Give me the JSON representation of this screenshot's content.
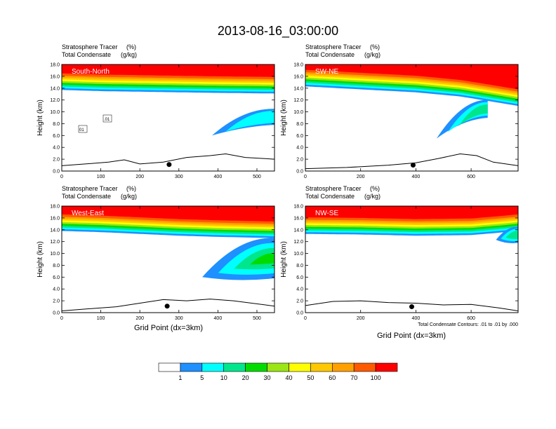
{
  "title": "2013-08-16_03:00:00",
  "colors": {
    "levels": [
      "#ffffff",
      "#1e90ff",
      "#00ffff",
      "#00e68c",
      "#00dc00",
      "#9be614",
      "#ffff00",
      "#ffc800",
      "#ffa000",
      "#ff5a00",
      "#ff0000"
    ],
    "axis": "#000000",
    "panel_label": "#ffffff"
  },
  "colorbar": {
    "labels": [
      "1",
      "5",
      "10",
      "20",
      "30",
      "40",
      "50",
      "60",
      "70",
      "100"
    ]
  },
  "footnote": "Total Condensate Contours: .01 to .01 by .000",
  "chart_data": [
    {
      "type": "heatmap",
      "panel": "South-North",
      "subtitle_left_1": "Stratosphere Tracer",
      "subtitle_unit_1": "(%)",
      "subtitle_left_2": "Total Condensate",
      "subtitle_unit_2": "(g/kg)",
      "ylabel": "Height (km)",
      "xlabel": "",
      "xlim": [
        0,
        545
      ],
      "ylim": [
        0,
        18
      ],
      "xticks": [
        0,
        100,
        200,
        300,
        400,
        500
      ],
      "yticks": [
        0,
        2,
        4,
        6,
        8,
        10,
        12,
        14,
        16,
        18
      ],
      "ytick_labels": [
        "0.0",
        "2.0",
        "4.0",
        "6.0",
        "8.0",
        "10.0",
        "12.0",
        "14.0",
        "16.0",
        "18.0"
      ],
      "tropopause_km": [
        [
          0,
          13.7
        ],
        [
          100,
          13.5
        ],
        [
          200,
          13.4
        ],
        [
          300,
          13.3
        ],
        [
          400,
          13.2
        ],
        [
          545,
          13.1
        ]
      ],
      "intrusion": {
        "tip_x": 385,
        "tip_km": 6.0,
        "base_x": 545,
        "top_km": 10.5,
        "bottom_km": 7.8,
        "max_level": 2
      },
      "terrain_km": [
        [
          0,
          0.9
        ],
        [
          60,
          1.2
        ],
        [
          120,
          1.5
        ],
        [
          160,
          1.9
        ],
        [
          200,
          1.2
        ],
        [
          260,
          1.5
        ],
        [
          320,
          2.3
        ],
        [
          380,
          2.6
        ],
        [
          420,
          2.9
        ],
        [
          470,
          2.3
        ],
        [
          545,
          2.0
        ]
      ],
      "marker": {
        "x": 275,
        "km": 1.1
      },
      "contour_labels": [
        "01",
        ".01"
      ]
    },
    {
      "type": "heatmap",
      "panel": "SW-NE",
      "subtitle_left_1": "Stratosphere Tracer",
      "subtitle_unit_1": "(%)",
      "subtitle_left_2": "Total Condensate",
      "subtitle_unit_2": "(g/kg)",
      "ylabel": "Height (km)",
      "xlabel": "",
      "xlim": [
        0,
        770
      ],
      "ylim": [
        0,
        18
      ],
      "xticks": [
        0,
        200,
        400,
        600
      ],
      "yticks": [
        0,
        2,
        4,
        6,
        8,
        10,
        12,
        14,
        16,
        18
      ],
      "ytick_labels": [
        "0.0",
        "2.0",
        "4.0",
        "6.0",
        "8.0",
        "10.0",
        "12.0",
        "14.0",
        "16.0",
        "18.0"
      ],
      "tropopause_km": [
        [
          0,
          14.3
        ],
        [
          200,
          13.8
        ],
        [
          400,
          13.3
        ],
        [
          560,
          12.6
        ],
        [
          640,
          12.0
        ],
        [
          770,
          11.0
        ]
      ],
      "intrusion": {
        "tip_x": 475,
        "tip_km": 5.5,
        "base_x": 660,
        "top_km": 12.0,
        "bottom_km": 9.0,
        "max_level": 3
      },
      "terrain_km": [
        [
          0,
          0.4
        ],
        [
          150,
          0.6
        ],
        [
          300,
          1.0
        ],
        [
          400,
          1.4
        ],
        [
          480,
          2.1
        ],
        [
          560,
          2.9
        ],
        [
          620,
          2.6
        ],
        [
          680,
          1.5
        ],
        [
          770,
          0.9
        ]
      ],
      "marker": {
        "x": 390,
        "km": 1.0
      },
      "contour_labels": []
    },
    {
      "type": "heatmap",
      "panel": "West-East",
      "subtitle_left_1": "Stratosphere Tracer",
      "subtitle_unit_1": "(%)",
      "subtitle_left_2": "Total Condensate",
      "subtitle_unit_2": "(g/kg)",
      "ylabel": "Height (km)",
      "xlabel": "Grid Point (dx=3km)",
      "xlim": [
        0,
        545
      ],
      "ylim": [
        0,
        18
      ],
      "xticks": [
        0,
        100,
        200,
        300,
        400,
        500
      ],
      "yticks": [
        0,
        2,
        4,
        6,
        8,
        10,
        12,
        14,
        16,
        18
      ],
      "ytick_labels": [
        "0.0",
        "2.0",
        "4.0",
        "6.0",
        "8.0",
        "10.0",
        "12.0",
        "14.0",
        "16.0",
        "18.0"
      ],
      "tropopause_km": [
        [
          0,
          13.8
        ],
        [
          100,
          13.6
        ],
        [
          200,
          13.3
        ],
        [
          300,
          13.0
        ],
        [
          400,
          12.8
        ],
        [
          545,
          12.6
        ]
      ],
      "intrusion": {
        "tip_x": 360,
        "tip_km": 6.0,
        "base_x": 545,
        "top_km": 12.6,
        "bottom_km": 5.8,
        "max_level": 5
      },
      "terrain_km": [
        [
          0,
          0.3
        ],
        [
          60,
          0.6
        ],
        [
          140,
          1.0
        ],
        [
          200,
          1.6
        ],
        [
          260,
          2.2
        ],
        [
          320,
          2.0
        ],
        [
          380,
          2.3
        ],
        [
          440,
          2.0
        ],
        [
          545,
          1.1
        ]
      ],
      "marker": {
        "x": 270,
        "km": 1.1
      },
      "contour_labels": []
    },
    {
      "type": "heatmap",
      "panel": "NW-SE",
      "subtitle_left_1": "Stratosphere Tracer",
      "subtitle_unit_1": "(%)",
      "subtitle_left_2": "Total Condensate",
      "subtitle_unit_2": "(g/kg)",
      "ylabel": "Height (km)",
      "xlabel": "Grid Point (dx=3km)",
      "xlim": [
        0,
        770
      ],
      "ylim": [
        0,
        18
      ],
      "xticks": [
        0,
        200,
        400,
        600
      ],
      "yticks": [
        0,
        2,
        4,
        6,
        8,
        10,
        12,
        14,
        16,
        18
      ],
      "ytick_labels": [
        "0.0",
        "2.0",
        "4.0",
        "6.0",
        "8.0",
        "10.0",
        "12.0",
        "14.0",
        "16.0",
        "18.0"
      ],
      "tropopause_km": [
        [
          0,
          13.3
        ],
        [
          200,
          13.2
        ],
        [
          400,
          13.0
        ],
        [
          600,
          13.1
        ],
        [
          700,
          13.5
        ],
        [
          770,
          13.8
        ]
      ],
      "intrusion": {
        "tip_x": 690,
        "tip_km": 12.3,
        "base_x": 770,
        "top_km": 14.5,
        "bottom_km": 11.8,
        "max_level": 3
      },
      "terrain_km": [
        [
          0,
          1.2
        ],
        [
          100,
          1.9
        ],
        [
          200,
          2.0
        ],
        [
          300,
          1.7
        ],
        [
          400,
          1.6
        ],
        [
          500,
          1.3
        ],
        [
          600,
          1.4
        ],
        [
          700,
          0.8
        ],
        [
          770,
          0.3
        ]
      ],
      "marker": {
        "x": 385,
        "km": 1.0
      },
      "contour_labels": []
    }
  ]
}
